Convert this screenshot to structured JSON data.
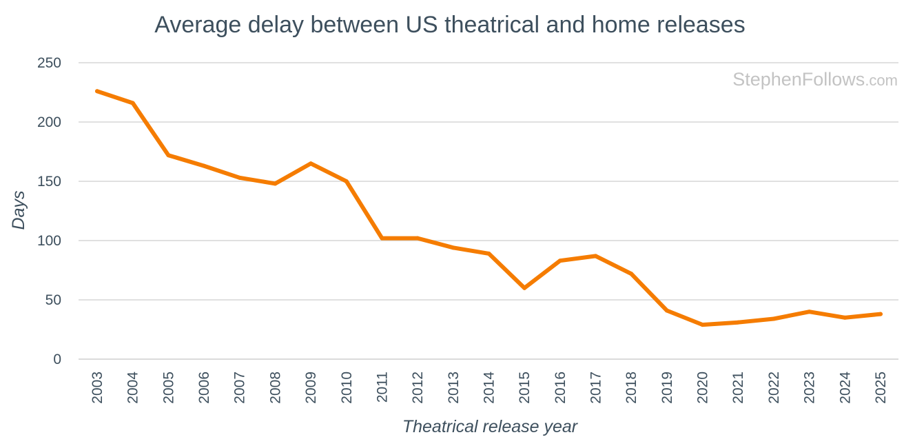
{
  "chart_data": {
    "type": "line",
    "title": "Average delay between US theatrical and home releases",
    "xlabel": "Theatrical release year",
    "ylabel": "Days",
    "ylim": [
      0,
      250
    ],
    "yticks": [
      "0",
      "50",
      "100",
      "150",
      "200",
      "250"
    ],
    "categories": [
      "2003",
      "2004",
      "2005",
      "2006",
      "2007",
      "2008",
      "2009",
      "2010",
      "2011",
      "2012",
      "2013",
      "2014",
      "2015",
      "2016",
      "2017",
      "2018",
      "2019",
      "2020",
      "2021",
      "2022",
      "2023",
      "2024",
      "2025"
    ],
    "series": [
      {
        "name": "Average delay (days)",
        "color": "#f57c00",
        "values": [
          226,
          216,
          172,
          163,
          153,
          148,
          165,
          150,
          102,
          102,
          94,
          89,
          60,
          83,
          87,
          72,
          41,
          29,
          31,
          34,
          40,
          35,
          38
        ]
      }
    ],
    "grid": true,
    "watermark": {
      "main": "StephenFollows",
      "suffix": ".com"
    }
  }
}
